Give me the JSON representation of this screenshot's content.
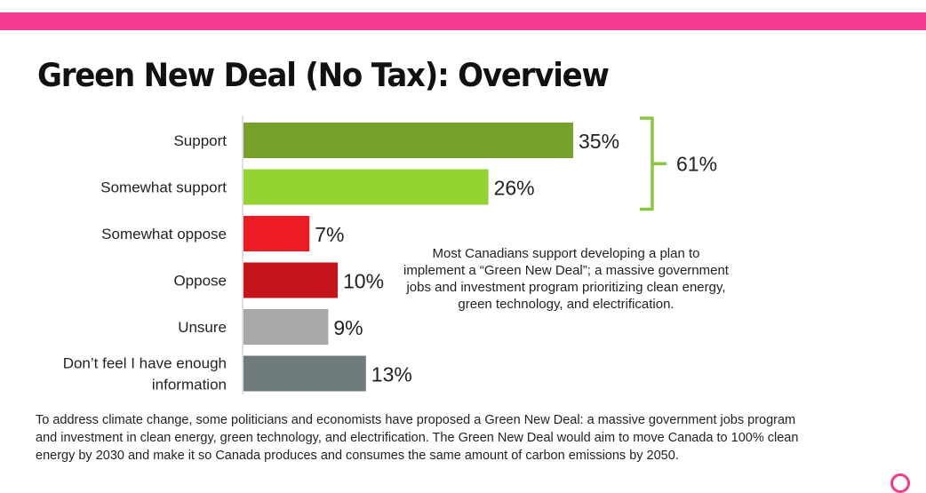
{
  "colors": {
    "top_bar": "#f33a93",
    "axis": "#bfbfbf",
    "bracket": "#8cc63f"
  },
  "page": {
    "title": "Green New Deal (No Tax): Overview",
    "note": "Most Canadians support developing a plan to implement a “Green New Deal”; a massive government jobs and investment program prioritizing clean energy, green technology, and electrification.",
    "footnote": "To address climate change, some politicians and economists have proposed a Green New Deal: a massive government jobs program and investment in clean energy, green technology, and electrification.  The Green New Deal would aim to move Canada to 100% clean energy by 2030 and make it so Canada produces and consumes the same amount of carbon emissions by 2050."
  },
  "chart_data": {
    "type": "bar",
    "orientation": "horizontal",
    "categories": [
      [
        "Support"
      ],
      [
        "Somewhat support"
      ],
      [
        "Somewhat oppose"
      ],
      [
        "Oppose"
      ],
      [
        "Unsure"
      ],
      [
        "Don’t feel I have enough",
        "information"
      ]
    ],
    "values": [
      35,
      26,
      7,
      10,
      9,
      13
    ],
    "value_labels": [
      "35%",
      "26%",
      "7%",
      "10%",
      "9%",
      "13%"
    ],
    "colors": [
      "#76a22b",
      "#94d331",
      "#ed1c24",
      "#c4161c",
      "#a7a9a9",
      "#6f7b7a"
    ],
    "xlim": [
      0,
      100
    ],
    "grid": false,
    "bracket": {
      "from": 0,
      "to": 1,
      "label": "61%"
    }
  }
}
